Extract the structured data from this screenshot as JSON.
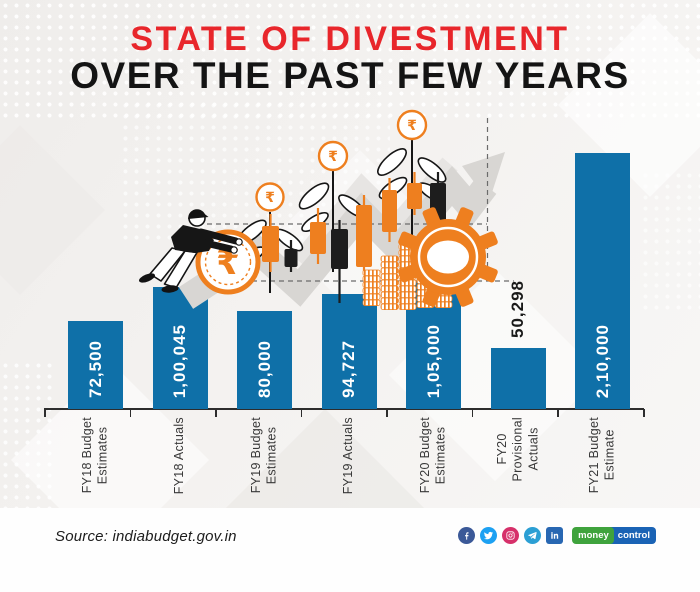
{
  "header": {
    "title_line1": "STATE OF DIVESTMENT",
    "title_line2": "OVER THE PAST FEW YEARS"
  },
  "chart_data": {
    "type": "bar",
    "title": "State of divestment over the past few years",
    "categories": [
      "FY18 Budget\nEstimates",
      "FY18 Actuals",
      "FY19 Budget\nEstimates",
      "FY19 Actuals",
      "FY20 Budget\nEstimates",
      "FY20\nProvisional\nActuals",
      "FY21 Budget\nEstimate"
    ],
    "values": [
      72500,
      100045,
      80000,
      94727,
      105000,
      50298,
      210000
    ],
    "value_labels": [
      "72,500",
      "1,00,045",
      "80,000",
      "94,727",
      "1,05,000",
      "50,298",
      "2,10,000"
    ],
    "outside_label_index": 5,
    "ylim": [
      0,
      210000
    ],
    "xlabel": "",
    "ylabel": "",
    "grid": false,
    "legend": false,
    "bar_color": "#0f70a8",
    "value_label_color_inside": "#ffffff",
    "value_label_color_outside": "#1a1a1a"
  },
  "footer": {
    "source": "Source: indiabudget.gov.in",
    "social": [
      {
        "name": "facebook",
        "color": "#3b5998"
      },
      {
        "name": "twitter",
        "color": "#1da1f2"
      },
      {
        "name": "instagram",
        "color": "#d6306a"
      },
      {
        "name": "telegram",
        "color": "#2b9fd4"
      },
      {
        "name": "linkedin",
        "color": "#2867b2"
      }
    ],
    "logo": {
      "money": "money",
      "control": "control",
      "money_bg": "#3fa33d",
      "control_bg": "#1a63b5"
    }
  },
  "colors": {
    "title_red": "#e8262b",
    "title_black": "#141414",
    "accent_orange": "#ee7f1f",
    "background": "#f2f0ee"
  }
}
